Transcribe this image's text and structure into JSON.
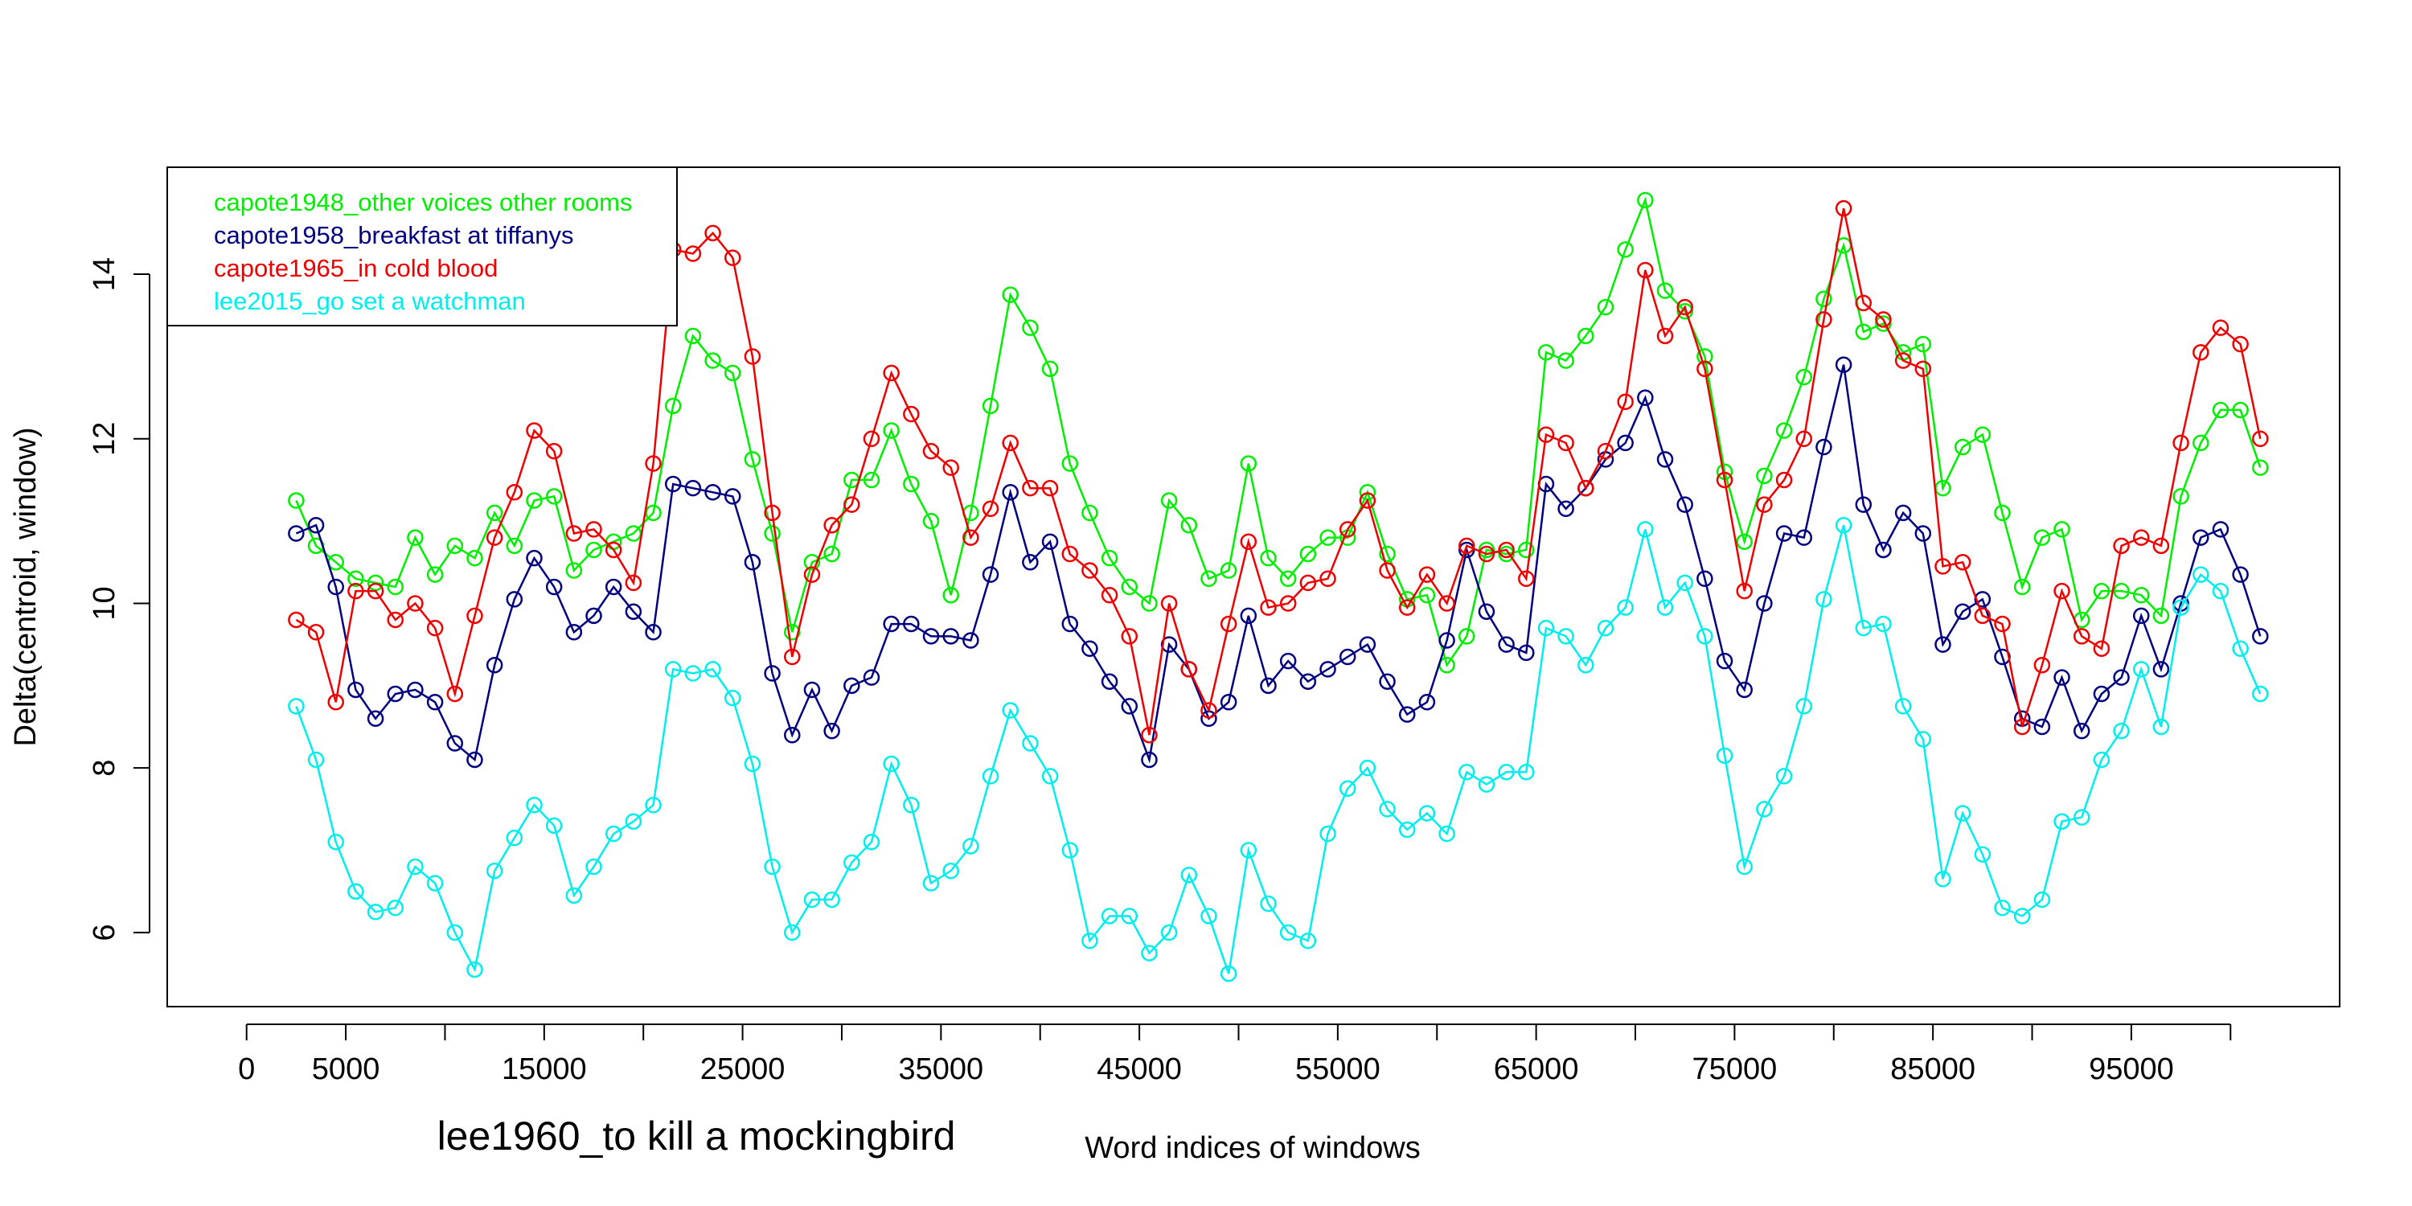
{
  "chart_data": {
    "type": "line",
    "title": "",
    "subtitle": "lee1960_to kill a mockingbird",
    "xlabel": "Word indices of windows",
    "ylabel": "Delta(centroid, window)",
    "xlim": [
      -4000,
      105500
    ],
    "ylim": [
      5.1,
      15.3
    ],
    "xticks": [
      0,
      5000,
      10000,
      15000,
      20000,
      25000,
      30000,
      35000,
      40000,
      45000,
      50000,
      55000,
      60000,
      65000,
      70000,
      75000,
      80000,
      85000,
      90000,
      95000,
      100000
    ],
    "xtick_labels": [
      "0",
      "5000",
      "",
      "15000",
      "",
      "25000",
      "",
      "35000",
      "",
      "45000",
      "",
      "55000",
      "",
      "65000",
      "",
      "75000",
      "",
      "85000",
      "",
      "95000",
      ""
    ],
    "yticks": [
      6,
      8,
      10,
      12,
      14
    ],
    "ytick_labels": [
      "6",
      "8",
      "10",
      "12",
      "14"
    ],
    "grid": false,
    "legend_position": "top-left",
    "markers": "open-circle",
    "x": [
      2500,
      3500,
      4500,
      5500,
      6500,
      7500,
      8500,
      9500,
      10500,
      11500,
      12500,
      13500,
      14500,
      15500,
      16500,
      17500,
      18500,
      19500,
      20500,
      21500,
      22500,
      23500,
      24500,
      25500,
      26500,
      27500,
      28500,
      29500,
      30500,
      31500,
      32500,
      33500,
      34500,
      35500,
      36500,
      37500,
      38500,
      39500,
      40500,
      41500,
      42500,
      43500,
      44500,
      45500,
      46500,
      47500,
      48500,
      49500,
      50500,
      51500,
      52500,
      53500,
      54500,
      55500,
      56500,
      57500,
      58500,
      59500,
      60500,
      61500,
      62500,
      63500,
      64500,
      65500,
      66500,
      67500,
      68500,
      69500,
      70500,
      71500,
      72500,
      73500,
      74500,
      75500,
      76500,
      77500,
      78500,
      79500,
      80500,
      81500,
      82500,
      83500,
      84500,
      85500,
      86500,
      87500,
      88500,
      89500,
      90500,
      91500,
      92500,
      93500,
      94500,
      95500,
      96500,
      97500,
      98500,
      99500,
      100500,
      101500
    ],
    "series": [
      {
        "name": "capote1948_other voices other rooms",
        "color": "#00ee00",
        "values": [
          11.25,
          10.7,
          10.5,
          10.3,
          10.25,
          10.2,
          10.8,
          10.35,
          10.7,
          10.55,
          11.1,
          10.7,
          11.25,
          11.3,
          10.4,
          10.65,
          10.75,
          10.85,
          11.1,
          12.4,
          13.25,
          12.95,
          12.8,
          11.75,
          10.85,
          9.65,
          10.5,
          10.6,
          11.5,
          11.5,
          12.1,
          11.45,
          11.0,
          10.1,
          11.1,
          12.4,
          13.75,
          13.35,
          12.85,
          11.7,
          11.1,
          10.55,
          10.2,
          10.0,
          11.25,
          10.95,
          10.3,
          10.4,
          11.7,
          10.55,
          10.3,
          10.6,
          10.8,
          10.8,
          11.35,
          10.6,
          10.05,
          10.1,
          9.25,
          9.6,
          10.65,
          10.6,
          10.65,
          13.05,
          12.95,
          13.25,
          13.6,
          14.3,
          14.9,
          13.8,
          13.55,
          13.0,
          11.6,
          10.75,
          11.55,
          12.1,
          12.75,
          13.7,
          14.35,
          13.3,
          13.4,
          13.05,
          13.15,
          11.4,
          11.9,
          12.05,
          11.1,
          10.2,
          10.8,
          10.9,
          9.8,
          10.15,
          10.15,
          10.1,
          9.85,
          11.3,
          11.95,
          12.35,
          12.35,
          11.65
        ]
      },
      {
        "name": "capote1958_breakfast at tiffanys",
        "color": "#000080",
        "values": [
          10.85,
          10.95,
          10.2,
          8.95,
          8.6,
          8.9,
          8.95,
          8.8,
          8.3,
          8.1,
          9.25,
          10.05,
          10.55,
          10.2,
          9.65,
          9.85,
          10.2,
          9.9,
          9.65,
          11.45,
          11.4,
          11.35,
          11.3,
          10.5,
          9.15,
          8.4,
          8.95,
          8.45,
          9.0,
          9.1,
          9.75,
          9.75,
          9.6,
          9.6,
          9.55,
          10.35,
          11.35,
          10.5,
          10.75,
          9.75,
          9.45,
          9.05,
          8.75,
          8.1,
          9.5,
          9.2,
          8.6,
          8.8,
          9.85,
          9.0,
          9.3,
          9.05,
          9.2,
          9.35,
          9.5,
          9.05,
          8.65,
          8.8,
          9.55,
          10.65,
          9.9,
          9.5,
          9.4,
          11.45,
          11.15,
          11.4,
          11.75,
          11.95,
          12.5,
          11.75,
          11.2,
          10.3,
          9.3,
          8.95,
          10.0,
          10.85,
          10.8,
          11.9,
          12.9,
          11.2,
          10.65,
          11.1,
          10.85,
          9.5,
          9.9,
          10.05,
          9.35,
          8.6,
          8.5,
          9.1,
          8.45,
          8.9,
          9.1,
          9.85,
          9.2,
          10.0,
          10.8,
          10.9,
          10.35,
          9.6
        ]
      },
      {
        "name": "capote1965_in cold blood",
        "color": "#ee0000",
        "values": [
          9.8,
          9.65,
          8.8,
          10.15,
          10.15,
          9.8,
          10.0,
          9.7,
          8.9,
          9.85,
          10.8,
          11.35,
          12.1,
          11.85,
          10.85,
          10.9,
          10.65,
          10.25,
          11.7,
          14.3,
          14.25,
          14.5,
          14.2,
          13.0,
          11.1,
          9.35,
          10.35,
          10.95,
          11.2,
          12.0,
          12.8,
          12.3,
          11.85,
          11.65,
          10.8,
          11.15,
          11.95,
          11.4,
          11.4,
          10.6,
          10.4,
          10.1,
          9.6,
          8.4,
          10.0,
          9.2,
          8.7,
          9.75,
          10.75,
          9.95,
          10.0,
          10.25,
          10.3,
          10.9,
          11.25,
          10.4,
          9.95,
          10.35,
          10.0,
          10.7,
          10.6,
          10.65,
          10.3,
          12.05,
          11.95,
          11.4,
          11.85,
          12.45,
          14.05,
          13.25,
          13.6,
          12.85,
          11.5,
          10.15,
          11.2,
          11.5,
          12.0,
          13.45,
          14.8,
          13.65,
          13.45,
          12.95,
          12.85,
          10.45,
          10.5,
          9.85,
          9.75,
          8.5,
          9.25,
          10.15,
          9.6,
          9.45,
          10.7,
          10.8,
          10.7,
          11.95,
          13.05,
          13.35,
          13.15,
          12.0
        ]
      },
      {
        "name": "lee2015_go set a watchman",
        "color": "#00eeee",
        "values": [
          8.75,
          8.1,
          7.1,
          6.5,
          6.25,
          6.3,
          6.8,
          6.6,
          6.0,
          5.55,
          6.75,
          7.15,
          7.55,
          7.3,
          6.45,
          6.8,
          7.2,
          7.35,
          7.55,
          9.2,
          9.15,
          9.2,
          8.85,
          8.05,
          6.8,
          6.0,
          6.4,
          6.4,
          6.85,
          7.1,
          8.05,
          7.55,
          6.6,
          6.75,
          7.05,
          7.9,
          8.7,
          8.3,
          7.9,
          7.0,
          5.9,
          6.2,
          6.2,
          5.75,
          6.0,
          6.7,
          6.2,
          5.5,
          7.0,
          6.35,
          6.0,
          5.9,
          7.2,
          7.75,
          8.0,
          7.5,
          7.25,
          7.45,
          7.2,
          7.95,
          7.8,
          7.95,
          7.95,
          9.7,
          9.6,
          9.25,
          9.7,
          9.95,
          10.9,
          9.95,
          10.25,
          9.6,
          8.15,
          6.8,
          7.5,
          7.9,
          8.75,
          10.05,
          10.95,
          9.7,
          9.75,
          8.75,
          8.35,
          6.65,
          7.45,
          6.95,
          6.3,
          6.2,
          6.4,
          7.35,
          7.4,
          8.1,
          8.45,
          9.2,
          8.5,
          9.95,
          10.35,
          10.15,
          9.45,
          8.9
        ]
      }
    ]
  }
}
